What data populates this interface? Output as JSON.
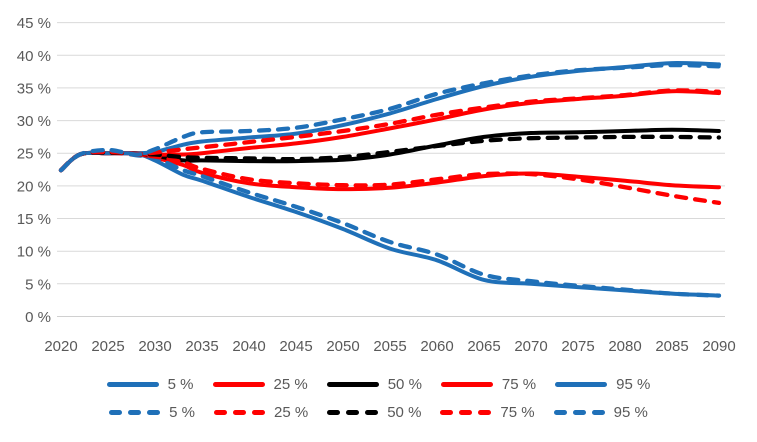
{
  "colors": {
    "blue": "#1F70B8",
    "red": "#FF0000",
    "black": "#000000",
    "grid": "#D9D9D9",
    "axis_text": "#595959"
  },
  "legend": {
    "rows": [
      {
        "style": "solid",
        "items": [
          {
            "label": "5 %",
            "color": "#1F70B8"
          },
          {
            "label": "25 %",
            "color": "#FF0000"
          },
          {
            "label": "50 %",
            "color": "#000000"
          },
          {
            "label": "75 %",
            "color": "#FF0000"
          },
          {
            "label": "95 %",
            "color": "#1F70B8"
          }
        ]
      },
      {
        "style": "dashed",
        "items": [
          {
            "label": "5 %",
            "color": "#1F70B8"
          },
          {
            "label": "25 %",
            "color": "#FF0000"
          },
          {
            "label": "50 %",
            "color": "#000000"
          },
          {
            "label": "75 %",
            "color": "#FF0000"
          },
          {
            "label": "95 %",
            "color": "#1F70B8"
          }
        ]
      }
    ]
  },
  "chart_data": {
    "type": "line",
    "title": "",
    "xlabel": "",
    "ylabel": "",
    "grid": true,
    "legend_position": "bottom (row 1 = solid series, row 2 = dashed series)",
    "xlim": [
      2020,
      2090
    ],
    "ylim": [
      0,
      45
    ],
    "x_ticks": [
      2020,
      2025,
      2030,
      2035,
      2040,
      2045,
      2050,
      2055,
      2060,
      2065,
      2070,
      2075,
      2080,
      2085,
      2090
    ],
    "x_tick_labels": [
      "2020",
      "2025",
      "2030",
      "2035",
      "2040",
      "2045",
      "2050",
      "2055",
      "2060",
      "2065",
      "2070",
      "2075",
      "2080",
      "2085",
      "2090"
    ],
    "y_ticks": [
      0,
      5,
      10,
      15,
      20,
      25,
      30,
      35,
      40,
      45
    ],
    "y_tick_labels": [
      "0 %",
      "5 %",
      "10 %",
      "15 %",
      "20 %",
      "25 %",
      "30 %",
      "35 %",
      "40 %",
      "45 %"
    ],
    "x": [
      2020,
      2022,
      2025,
      2028,
      2030,
      2033,
      2035,
      2040,
      2045,
      2050,
      2055,
      2060,
      2065,
      2070,
      2075,
      2080,
      2085,
      2090
    ],
    "series": [
      {
        "name": "5 %",
        "style": "solid",
        "color": "#1F70B8",
        "values": [
          22.4,
          24.8,
          25.0,
          24.9,
          23.9,
          21.7,
          20.8,
          18.3,
          16.0,
          13.4,
          10.4,
          8.6,
          5.6,
          5.0,
          4.5,
          4.0,
          3.5,
          3.2
        ]
      },
      {
        "name": "25 %",
        "style": "solid",
        "color": "#FF0000",
        "values": [
          22.4,
          24.8,
          25.0,
          24.9,
          24.3,
          23.2,
          22.0,
          20.4,
          19.8,
          19.5,
          19.7,
          20.5,
          21.5,
          21.9,
          21.4,
          20.8,
          20.1,
          19.8
        ]
      },
      {
        "name": "50 %",
        "style": "solid",
        "color": "#000000",
        "values": [
          22.4,
          24.8,
          25.0,
          25.0,
          24.6,
          23.9,
          23.9,
          23.8,
          23.8,
          24.0,
          24.8,
          26.2,
          27.5,
          28.1,
          28.2,
          28.4,
          28.6,
          28.4
        ]
      },
      {
        "name": "75 %",
        "style": "solid",
        "color": "#FF0000",
        "values": [
          22.4,
          24.8,
          25.0,
          25.0,
          24.8,
          24.8,
          25.0,
          25.8,
          26.5,
          27.5,
          28.8,
          30.2,
          31.7,
          32.7,
          33.3,
          33.8,
          34.5,
          34.2
        ]
      },
      {
        "name": "95 %",
        "style": "solid",
        "color": "#1F70B8",
        "values": [
          22.4,
          24.8,
          25.0,
          25.0,
          25.2,
          26.3,
          26.8,
          27.4,
          28.0,
          29.3,
          31.1,
          33.3,
          35.3,
          36.7,
          37.6,
          38.2,
          38.8,
          38.6
        ]
      },
      {
        "name": "5 %",
        "style": "dashed",
        "color": "#1F70B8",
        "values": [
          22.4,
          24.8,
          25.2,
          24.7,
          24.3,
          22.4,
          21.5,
          19.0,
          16.8,
          14.3,
          11.4,
          9.5,
          6.4,
          5.4,
          4.7,
          4.1,
          3.5,
          3.2
        ]
      },
      {
        "name": "25 %",
        "style": "dashed",
        "color": "#FF0000",
        "values": [
          22.4,
          24.8,
          25.1,
          24.8,
          24.5,
          23.6,
          22.6,
          21.0,
          20.4,
          20.1,
          20.2,
          21.0,
          21.8,
          21.8,
          21.0,
          19.8,
          18.5,
          17.4
        ]
      },
      {
        "name": "50 %",
        "style": "dashed",
        "color": "#000000",
        "values": [
          22.4,
          24.8,
          25.1,
          24.9,
          24.8,
          24.4,
          24.3,
          24.2,
          24.1,
          24.4,
          25.2,
          26.1,
          26.9,
          27.3,
          27.4,
          27.5,
          27.5,
          27.4
        ]
      },
      {
        "name": "75 %",
        "style": "dashed",
        "color": "#FF0000",
        "values": [
          22.4,
          24.8,
          25.2,
          24.9,
          25.1,
          25.6,
          25.9,
          26.7,
          27.5,
          28.4,
          29.5,
          30.9,
          32.0,
          32.9,
          33.4,
          33.9,
          34.6,
          34.4
        ]
      },
      {
        "name": "95 %",
        "style": "dashed",
        "color": "#1F70B8",
        "values": [
          22.4,
          24.8,
          25.5,
          24.8,
          25.6,
          27.5,
          28.2,
          28.4,
          28.9,
          30.2,
          31.8,
          34.1,
          35.7,
          36.9,
          37.7,
          38.1,
          38.5,
          38.3
        ]
      }
    ]
  }
}
